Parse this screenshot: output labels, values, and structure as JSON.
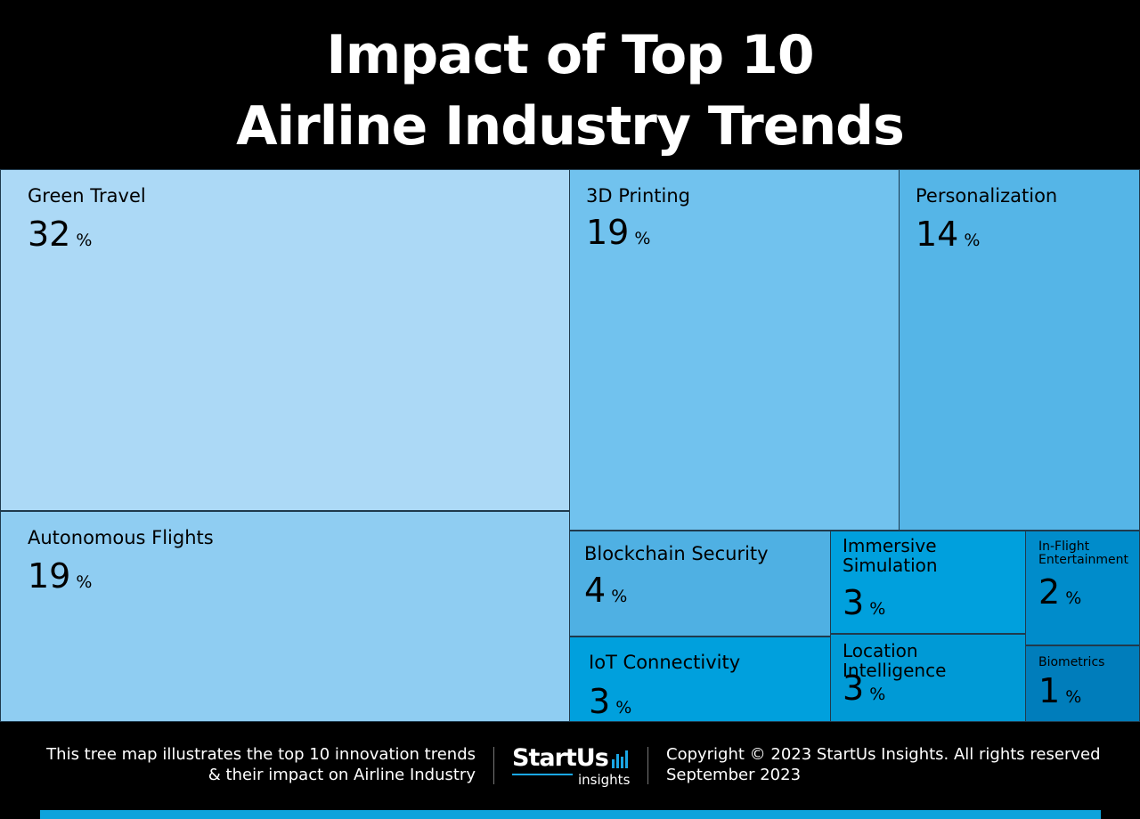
{
  "title": {
    "line1": "Impact of Top 10",
    "line2": "Airline Industry Trends"
  },
  "chart_data": {
    "type": "treemap",
    "items": [
      {
        "label": "Green Travel",
        "value": 32,
        "unit": "%",
        "color": "#acd9f6"
      },
      {
        "label": "Autonomous Flights",
        "value": 19,
        "unit": "%",
        "color": "#8fcdf2"
      },
      {
        "label": "3D Printing",
        "value": 19,
        "unit": "%",
        "color": "#71c2ee"
      },
      {
        "label": "Personalization",
        "value": 14,
        "unit": "%",
        "color": "#55b5e7"
      },
      {
        "label": "Blockchain Security",
        "value": 4,
        "unit": "%",
        "color": "#4fb0e3"
      },
      {
        "label": "IoT Connectivity",
        "value": 3,
        "unit": "%",
        "color": "#00a0dd"
      },
      {
        "label": "Immersive\nSimulation",
        "value": 3,
        "unit": "%",
        "color": "#00a0dd"
      },
      {
        "label": "Location Intelligence",
        "value": 3,
        "unit": "%",
        "color": "#009ad6"
      },
      {
        "label": "In-Flight\nEntertainment",
        "value": 2,
        "unit": "%",
        "color": "#008ccb"
      },
      {
        "label": "Biometrics",
        "value": 1,
        "unit": "%",
        "color": "#007dbb"
      }
    ]
  },
  "footer": {
    "description_line1": "This tree map illustrates the top 10 innovation trends",
    "description_line2": "& their impact on Airline Industry",
    "logo_main": "StartUs",
    "logo_sub": "insights",
    "copyright": "Copyright © 2023 StartUs Insights. All rights reserved",
    "date": "September 2023"
  }
}
